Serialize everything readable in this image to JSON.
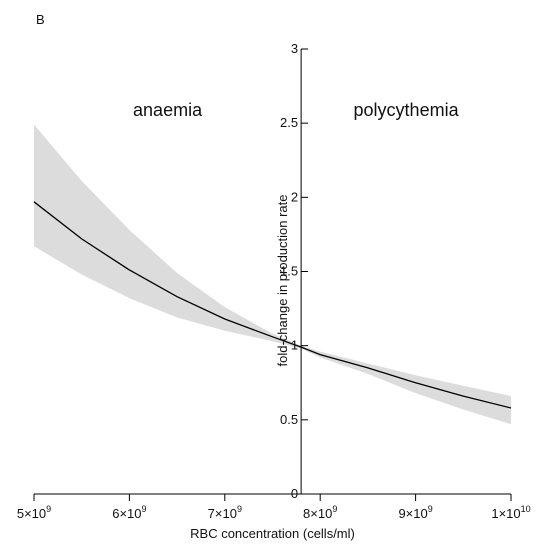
{
  "panel_label": "B",
  "chart_data": {
    "type": "line",
    "xlabel": "RBC concentration (cells/ml)",
    "ylabel": "fold-change in production rate",
    "x_ticks": [
      {
        "value": 5000000000.0,
        "mant": "5×10",
        "exp": "9"
      },
      {
        "value": 6000000000.0,
        "mant": "6×10",
        "exp": "9"
      },
      {
        "value": 7000000000.0,
        "mant": "7×10",
        "exp": "9"
      },
      {
        "value": 8000000000.0,
        "mant": "8×10",
        "exp": "9"
      },
      {
        "value": 9000000000.0,
        "mant": "9×10",
        "exp": "9"
      },
      {
        "value": 10000000000.0,
        "mant": "1×10",
        "exp": "10"
      }
    ],
    "y_ticks": [
      "0",
      "0.5",
      "1",
      "1.5",
      "2",
      "2.5",
      "3"
    ],
    "xlim": [
      5000000000.0,
      10000000000.0
    ],
    "ylim": [
      0,
      3
    ],
    "y_axis_at_x": 7800000000.0,
    "annotations": [
      {
        "text": "anaemia",
        "x": 6400000000.0,
        "y": 2.55
      },
      {
        "text": "polycythemia",
        "x": 8900000000.0,
        "y": 2.55
      }
    ],
    "series": [
      {
        "role": "mean",
        "color": "#000000",
        "x": [
          5000000000.0,
          5500000000.0,
          6000000000.0,
          6500000000.0,
          7000000000.0,
          7500000000.0,
          7800000000.0,
          8000000000.0,
          8500000000.0,
          9000000000.0,
          9500000000.0,
          10000000000.0
        ],
        "y": [
          1.97,
          1.72,
          1.51,
          1.33,
          1.18,
          1.06,
          0.99,
          0.94,
          0.85,
          0.75,
          0.66,
          0.58
        ]
      }
    ],
    "band": {
      "color": "#dcdcdc",
      "x": [
        5000000000.0,
        5500000000.0,
        6000000000.0,
        6500000000.0,
        7000000000.0,
        7500000000.0,
        7800000000.0,
        8000000000.0,
        8500000000.0,
        9000000000.0,
        9500000000.0,
        10000000000.0
      ],
      "upper": [
        2.49,
        2.11,
        1.78,
        1.49,
        1.26,
        1.08,
        1.0,
        0.96,
        0.88,
        0.8,
        0.73,
        0.66
      ],
      "lower": [
        1.67,
        1.48,
        1.32,
        1.19,
        1.1,
        1.03,
        0.98,
        0.92,
        0.81,
        0.68,
        0.57,
        0.47
      ]
    }
  }
}
